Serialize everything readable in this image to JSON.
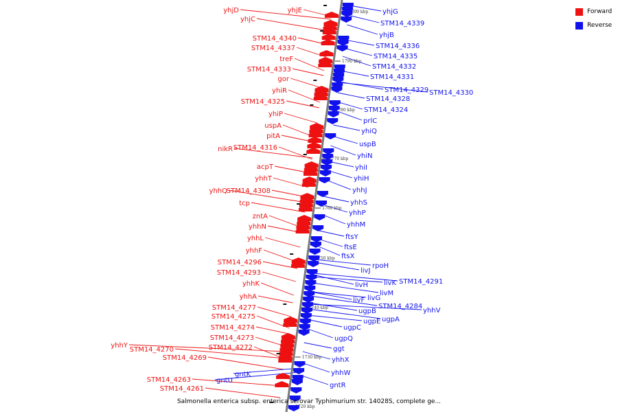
{
  "caption": "Salmonella enterica subsp. enterica serovar Typhimurium str. 14028S, complete ge...",
  "legend": [
    {
      "label": "Forward",
      "color": "#ee1111"
    },
    {
      "label": "Reverse",
      "color": "#1111ee"
    }
  ],
  "colors": {
    "forward": "#ee1111",
    "reverse": "#1111ee",
    "axis": "#7a7a7a"
  },
  "ticks": [
    "1800 kbp",
    "1790 kbp",
    "1780 kbp",
    "1770 kbp",
    "1760 kbp",
    "1750 kbp",
    "1740 kbp",
    "1730 kbp",
    "1720 kbp"
  ],
  "forward_labels": [
    "yhjE",
    "yhjD",
    "yhjC",
    "STM14_4340",
    "STM14_4337",
    "treF",
    "STM14_4333",
    "gor",
    "yhiR",
    "STM14_4325",
    "yhiP",
    "uspA",
    "pitA",
    "nikR",
    "STM14_4316",
    "acpT",
    "yhhT",
    "yhhQ",
    "STM14_4308",
    "tcp",
    "zntA",
    "yhhN",
    "yhhL",
    "yhhF",
    "STM14_4296",
    "STM14_4293",
    "yhhK",
    "yhhA",
    "STM14_4277",
    "STM14_4275",
    "STM14_4274",
    "STM14_4273",
    "STM14_4272",
    "yhhY",
    "STM14_4270",
    "STM14_4269",
    "STM14_4263",
    "STM14_4261"
  ],
  "reverse_labels": [
    "yhjG",
    "STM14_4339",
    "yhjB",
    "STM14_4336",
    "STM14_4335",
    "STM14_4332",
    "STM14_4331",
    "STM14_4329",
    "STM14_4330",
    "STM14_4328",
    "STM14_4324",
    "prlC",
    "yhiQ",
    "uspB",
    "yhiN",
    "yhiI",
    "yhiH",
    "yhhJ",
    "yhhS",
    "yhhP",
    "yhhM",
    "ftsY",
    "ftsE",
    "ftsX",
    "rpoH",
    "livJ",
    "livH",
    "livK",
    "STM14_4291",
    "livM",
    "livG",
    "livF",
    "STM14_4284",
    "yhhV",
    "ugpB",
    "ugpA",
    "ugpE",
    "ugpC",
    "ugpQ",
    "ggt",
    "yhhX",
    "yhhW",
    "gntK",
    "gntU",
    "gntR"
  ]
}
